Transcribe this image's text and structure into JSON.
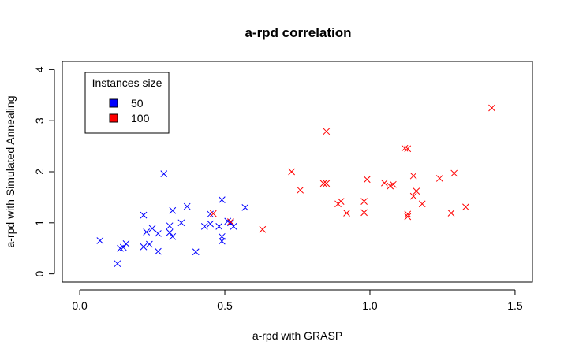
{
  "chart_data": {
    "type": "scatter",
    "title": "a-rpd correlation",
    "xlabel": "a-rpd with GRASP",
    "ylabel": "a-rpd with Simulated Annealing",
    "xlim": [
      -0.06,
      1.56
    ],
    "ylim": [
      -0.16,
      4.16
    ],
    "xticks": [
      0.0,
      0.5,
      1.0,
      1.5
    ],
    "xtick_labels": [
      "0.0",
      "0.5",
      "1.0",
      "1.5"
    ],
    "yticks": [
      0,
      1,
      2,
      3,
      4
    ],
    "ytick_labels": [
      "0",
      "1",
      "2",
      "3",
      "4"
    ],
    "marker": "x",
    "grid": false,
    "legend": {
      "title": "Instances size",
      "placement": "top-left"
    },
    "series": [
      {
        "name": "50",
        "color": "#0000ff",
        "points": [
          [
            0.07,
            0.65
          ],
          [
            0.13,
            0.2
          ],
          [
            0.14,
            0.5
          ],
          [
            0.15,
            0.52
          ],
          [
            0.16,
            0.59
          ],
          [
            0.22,
            1.15
          ],
          [
            0.22,
            0.53
          ],
          [
            0.23,
            0.82
          ],
          [
            0.24,
            0.58
          ],
          [
            0.25,
            0.89
          ],
          [
            0.27,
            0.79
          ],
          [
            0.27,
            0.44
          ],
          [
            0.29,
            1.96
          ],
          [
            0.31,
            0.81
          ],
          [
            0.31,
            0.94
          ],
          [
            0.32,
            0.73
          ],
          [
            0.32,
            1.24
          ],
          [
            0.35,
            1.0
          ],
          [
            0.37,
            1.32
          ],
          [
            0.4,
            0.43
          ],
          [
            0.43,
            0.93
          ],
          [
            0.45,
            0.98
          ],
          [
            0.45,
            1.17
          ],
          [
            0.48,
            0.93
          ],
          [
            0.49,
            1.45
          ],
          [
            0.49,
            0.73
          ],
          [
            0.49,
            0.64
          ],
          [
            0.51,
            1.03
          ],
          [
            0.52,
            1.0
          ],
          [
            0.53,
            0.93
          ],
          [
            0.57,
            1.3
          ]
        ]
      },
      {
        "name": "100",
        "color": "#ff0000",
        "points": [
          [
            0.46,
            1.18
          ],
          [
            0.52,
            1.02
          ],
          [
            0.63,
            0.87
          ],
          [
            0.73,
            2.0
          ],
          [
            0.76,
            1.64
          ],
          [
            0.84,
            1.77
          ],
          [
            0.85,
            1.77
          ],
          [
            0.85,
            2.79
          ],
          [
            0.89,
            1.37
          ],
          [
            0.9,
            1.42
          ],
          [
            0.92,
            1.19
          ],
          [
            0.98,
            1.42
          ],
          [
            0.98,
            1.2
          ],
          [
            0.99,
            1.85
          ],
          [
            1.05,
            1.78
          ],
          [
            1.07,
            1.72
          ],
          [
            1.08,
            1.75
          ],
          [
            1.12,
            2.46
          ],
          [
            1.13,
            2.45
          ],
          [
            1.13,
            1.17
          ],
          [
            1.13,
            1.12
          ],
          [
            1.15,
            1.92
          ],
          [
            1.15,
            1.52
          ],
          [
            1.16,
            1.62
          ],
          [
            1.18,
            1.37
          ],
          [
            1.24,
            1.87
          ],
          [
            1.28,
            1.19
          ],
          [
            1.29,
            1.97
          ],
          [
            1.33,
            1.31
          ],
          [
            1.42,
            3.25
          ]
        ]
      }
    ]
  }
}
